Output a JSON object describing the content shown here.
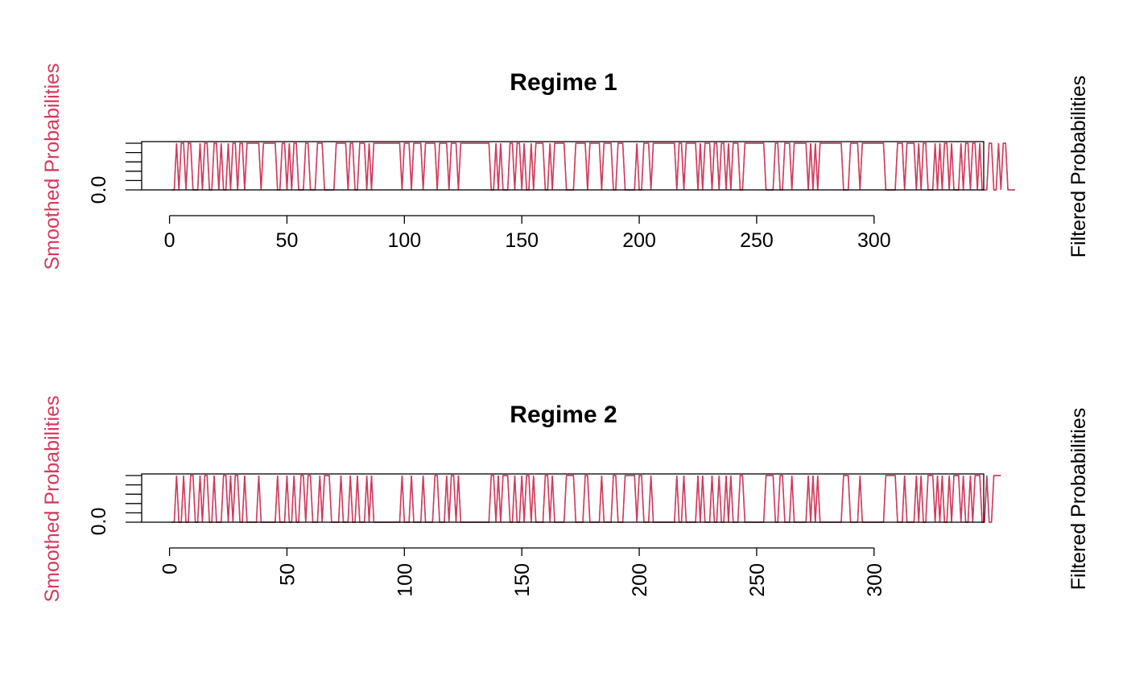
{
  "chart_data": [
    {
      "type": "line",
      "title": "Regime 1",
      "ylabel_left": "Smoothed Probabilities",
      "ylabel_right": "Filtered Probabilities",
      "y_tick_labels": [
        "0.0"
      ],
      "x_ticks": [
        0,
        50,
        100,
        150,
        200,
        250,
        300
      ],
      "x_tick_labels": [
        "0",
        "50",
        "100",
        "150",
        "200",
        "250",
        "300"
      ],
      "x_tick_orientation": "horizontal",
      "xlim": [
        1,
        334
      ],
      "ylim": [
        0,
        1
      ],
      "series": [
        {
          "role": "smoothed",
          "color": "#d5395c"
        },
        {
          "role": "filtered",
          "color": "#000000"
        }
      ],
      "values": [
        0,
        0,
        1,
        0,
        1,
        1,
        0,
        1,
        1,
        0,
        0,
        0,
        1,
        0,
        1,
        1,
        0,
        0,
        1,
        1,
        0,
        1,
        0,
        0,
        1,
        0,
        1,
        1,
        0,
        1,
        1,
        0,
        1,
        1,
        1,
        1,
        1,
        1,
        0,
        1,
        1,
        1,
        1,
        1,
        1,
        0,
        0,
        1,
        1,
        0,
        1,
        0,
        1,
        1,
        0,
        0,
        0,
        1,
        1,
        0,
        0,
        0,
        1,
        1,
        1,
        0,
        0,
        0,
        0,
        0,
        1,
        1,
        1,
        1,
        1,
        0,
        1,
        1,
        0,
        0,
        1,
        1,
        1,
        0,
        1,
        0,
        1,
        1,
        1,
        1,
        1,
        1,
        1,
        1,
        1,
        1,
        1,
        1,
        0,
        1,
        1,
        1,
        0,
        1,
        1,
        1,
        1,
        0,
        1,
        1,
        1,
        1,
        1,
        0,
        1,
        1,
        1,
        1,
        0,
        1,
        1,
        1,
        0,
        1,
        1,
        1,
        1,
        1,
        1,
        1,
        1,
        1,
        1,
        1,
        1,
        1,
        0,
        0,
        1,
        0,
        1,
        0,
        0,
        0,
        1,
        1,
        0,
        1,
        1,
        0,
        1,
        0,
        0,
        1,
        0,
        1,
        1,
        1,
        1,
        0,
        0,
        1,
        0,
        1,
        1,
        1,
        1,
        1,
        0,
        0,
        0,
        0,
        1,
        1,
        1,
        1,
        1,
        0,
        1,
        1,
        1,
        1,
        1,
        0,
        1,
        1,
        1,
        1,
        0,
        0,
        1,
        1,
        1,
        0,
        0,
        0,
        0,
        0,
        1,
        0,
        0,
        1,
        1,
        1,
        0,
        1,
        1,
        1,
        1,
        1,
        1,
        1,
        1,
        1,
        1,
        0,
        1,
        1,
        0,
        1,
        1,
        1,
        1,
        1,
        0,
        1,
        0,
        1,
        1,
        1,
        0,
        1,
        1,
        0,
        1,
        1,
        0,
        1,
        0,
        1,
        1,
        1,
        0,
        0,
        1,
        1,
        1,
        1,
        1,
        1,
        1,
        1,
        1,
        0,
        0,
        0,
        0,
        1,
        1,
        0,
        0,
        1,
        1,
        1,
        0,
        1,
        1,
        1,
        1,
        1,
        1,
        0,
        1,
        0,
        1,
        0,
        1,
        1,
        1,
        1,
        1,
        1,
        1,
        1,
        1,
        1,
        0,
        0,
        0,
        1,
        1,
        1,
        1,
        0,
        1,
        1,
        1,
        1,
        1,
        1,
        1,
        1,
        1,
        1,
        0,
        0,
        0,
        0,
        0,
        1,
        1,
        1,
        0,
        1,
        1,
        1,
        1,
        0,
        1,
        0,
        1,
        1,
        0,
        0,
        0,
        1,
        0,
        1,
        0,
        1,
        1,
        0,
        1,
        0,
        0,
        0,
        1,
        0,
        1,
        1,
        0,
        1,
        1,
        0,
        1,
        0,
        0,
        0,
        1,
        1,
        0,
        0,
        1,
        0,
        1,
        1,
        0,
        0,
        0,
        0
      ]
    },
    {
      "type": "line",
      "title": "Regime 2",
      "ylabel_left": "Smoothed Probabilities",
      "ylabel_right": "Filtered Probabilities",
      "y_tick_labels": [
        "0.0"
      ],
      "x_ticks": [
        0,
        50,
        100,
        150,
        200,
        250,
        300
      ],
      "x_tick_labels": [
        "0",
        "50",
        "100",
        "150",
        "200",
        "250",
        "300"
      ],
      "x_tick_orientation": "vertical",
      "xlim": [
        1,
        334
      ],
      "ylim": [
        0,
        1
      ],
      "series": [
        {
          "role": "smoothed",
          "color": "#d5395c"
        },
        {
          "role": "filtered",
          "color": "#000000"
        }
      ],
      "values": [
        0,
        0,
        1,
        0,
        0,
        1,
        0,
        0,
        1,
        1,
        0,
        0,
        1,
        0,
        1,
        1,
        0,
        0,
        1,
        0,
        0,
        0,
        1,
        1,
        0,
        1,
        0,
        1,
        1,
        0,
        0,
        1,
        0,
        0,
        0,
        0,
        0,
        1,
        0,
        0,
        0,
        0,
        0,
        0,
        0,
        1,
        0,
        0,
        0,
        1,
        0,
        0,
        1,
        0,
        0,
        1,
        1,
        0,
        1,
        1,
        0,
        0,
        0,
        1,
        0,
        1,
        1,
        1,
        0,
        0,
        0,
        0,
        1,
        0,
        0,
        0,
        1,
        0,
        0,
        1,
        0,
        0,
        0,
        1,
        0,
        1,
        0,
        0,
        0,
        0,
        0,
        0,
        0,
        0,
        0,
        0,
        0,
        0,
        1,
        0,
        0,
        0,
        1,
        0,
        0,
        0,
        0,
        1,
        0,
        0,
        0,
        0,
        1,
        1,
        0,
        0,
        0,
        1,
        0,
        1,
        1,
        0,
        1,
        0,
        0,
        0,
        0,
        0,
        0,
        0,
        0,
        0,
        0,
        0,
        0,
        0,
        1,
        1,
        0,
        1,
        0,
        1,
        1,
        1,
        0,
        0,
        1,
        0,
        0,
        1,
        0,
        1,
        1,
        0,
        1,
        0,
        0,
        0,
        0,
        1,
        1,
        0,
        1,
        0,
        0,
        0,
        0,
        0,
        1,
        1,
        1,
        1,
        0,
        0,
        0,
        0,
        1,
        1,
        0,
        0,
        0,
        0,
        0,
        1,
        0,
        0,
        0,
        0,
        1,
        1,
        0,
        0,
        0,
        1,
        1,
        1,
        1,
        1,
        0,
        1,
        1,
        0,
        0,
        0,
        1,
        0,
        0,
        0,
        0,
        0,
        0,
        0,
        0,
        0,
        0,
        1,
        0,
        0,
        1,
        0,
        0,
        0,
        0,
        0,
        1,
        0,
        1,
        0,
        0,
        0,
        1,
        0,
        0,
        1,
        0,
        0,
        1,
        0,
        1,
        0,
        0,
        0,
        1,
        1,
        0,
        0,
        0,
        0,
        0,
        0,
        0,
        0,
        0,
        1,
        1,
        1,
        1,
        0,
        0,
        1,
        1,
        0,
        0,
        0,
        1,
        0,
        0,
        0,
        0,
        0,
        0,
        1,
        0,
        1,
        0,
        1,
        0,
        0,
        0,
        0,
        0,
        0,
        0,
        0,
        0,
        0,
        1,
        1,
        1,
        0,
        0,
        0,
        0,
        1,
        0,
        0,
        0,
        0,
        0,
        0,
        0,
        0,
        0,
        0,
        1,
        1,
        1,
        1,
        1,
        0,
        0,
        0,
        1,
        0,
        0,
        0,
        0,
        1,
        0,
        1,
        0,
        0,
        1,
        1,
        1,
        0,
        1,
        0,
        1,
        0,
        0,
        1,
        0,
        1,
        1,
        1,
        0,
        1,
        0,
        0,
        1,
        0,
        1,
        1,
        1,
        0,
        0,
        1,
        0,
        0,
        1,
        1,
        1,
        1
      ]
    }
  ]
}
